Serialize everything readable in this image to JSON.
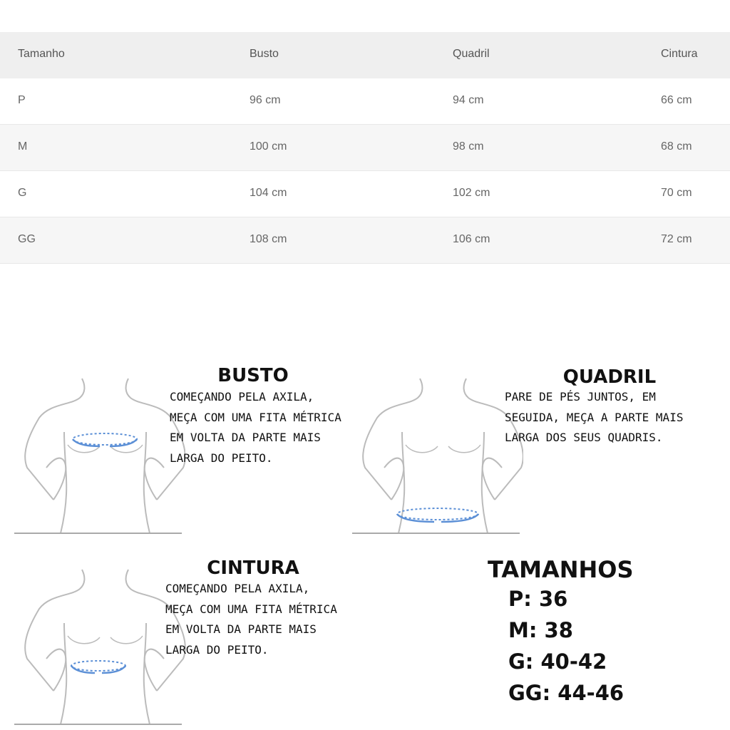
{
  "table": {
    "headers": [
      "Tamanho",
      "Busto",
      "Quadril",
      "Cintura"
    ],
    "rows": [
      [
        "P",
        "96 cm",
        "94 cm",
        "66 cm"
      ],
      [
        "M",
        "100 cm",
        "98 cm",
        "68 cm"
      ],
      [
        "G",
        "104 cm",
        "102 cm",
        "70 cm"
      ],
      [
        "GG",
        "108 cm",
        "106 cm",
        "72 cm"
      ]
    ]
  },
  "guides": {
    "busto": {
      "title": "BUSTO",
      "text": "COMEÇANDO PELA AXILA,\nMEÇA COM UMA FITA MÉTRICA\nEM VOLTA DA PARTE MAIS\nLARGA DO PEITO."
    },
    "quadril": {
      "title": "QUADRIL",
      "text": "PARE DE PÉS JUNTOS, EM\nSEGUIDA, MEÇA A PARTE MAIS\nLARGA DOS SEUS QUADRIS."
    },
    "cintura": {
      "title": "CINTURA",
      "text": "COMEÇANDO PELA AXILA,\nMEÇA COM UMA FITA MÉTRICA\nEM VOLTA DA PARTE MAIS\nLARGA DO PEITO."
    }
  },
  "sizes": {
    "title": "TAMANHOS",
    "items": [
      "P: 36",
      "M: 38",
      "G: 40-42",
      "GG: 44-46"
    ]
  },
  "colors": {
    "tape": "#5b8fd6",
    "outline": "#b8b8b8",
    "header_bg": "#efefef"
  }
}
